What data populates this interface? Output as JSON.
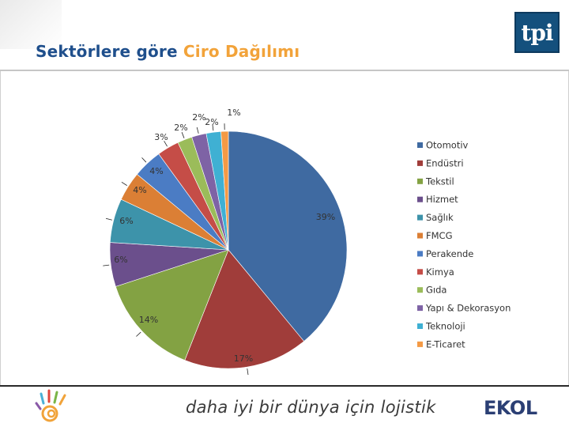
{
  "header": {
    "title_part1": "Sektörlere göre",
    "title_part2": "Ciro Dağılımı",
    "logo_text": "tpi"
  },
  "footer": {
    "tagline": "daha iyi bir dünya için lojistik",
    "brand": "EKOL",
    "left_logo_icon": "hand-flower-logo-icon"
  },
  "chart_data": {
    "type": "pie",
    "title": "",
    "start": "12 o'clock, clockwise",
    "legend_position": "right",
    "slices": [
      {
        "label": "Otomotiv",
        "value": 39,
        "display": "39%",
        "color": "#3f6aa1"
      },
      {
        "label": "Endüstri",
        "value": 17,
        "display": "17%",
        "color": "#a03d3a"
      },
      {
        "label": "Tekstil",
        "value": 14,
        "display": "14%",
        "color": "#83a243"
      },
      {
        "label": "Hizmet",
        "value": 6,
        "display": "6%",
        "color": "#6b4f8c"
      },
      {
        "label": "Sağlık",
        "value": 6,
        "display": "6%",
        "color": "#3d93aa"
      },
      {
        "label": "FMCG",
        "value": 4,
        "display": "4%",
        "color": "#db7f35"
      },
      {
        "label": "Perakende",
        "value": 4,
        "display": "4%",
        "color": "#4b7cc4"
      },
      {
        "label": "Kimya",
        "value": 3,
        "display": "3%",
        "color": "#c54d47"
      },
      {
        "label": "Gıda",
        "value": 2,
        "display": "2%",
        "color": "#9bbc5a"
      },
      {
        "label": "Yapı & Dekorasyon",
        "value": 2,
        "display": "2%",
        "color": "#7e63a5"
      },
      {
        "label": "Teknoloji",
        "value": 2,
        "display": "2%",
        "color": "#3fb0d3"
      },
      {
        "label": "E-Ticaret",
        "value": 1,
        "display": "1%",
        "color": "#f49a45"
      }
    ]
  }
}
